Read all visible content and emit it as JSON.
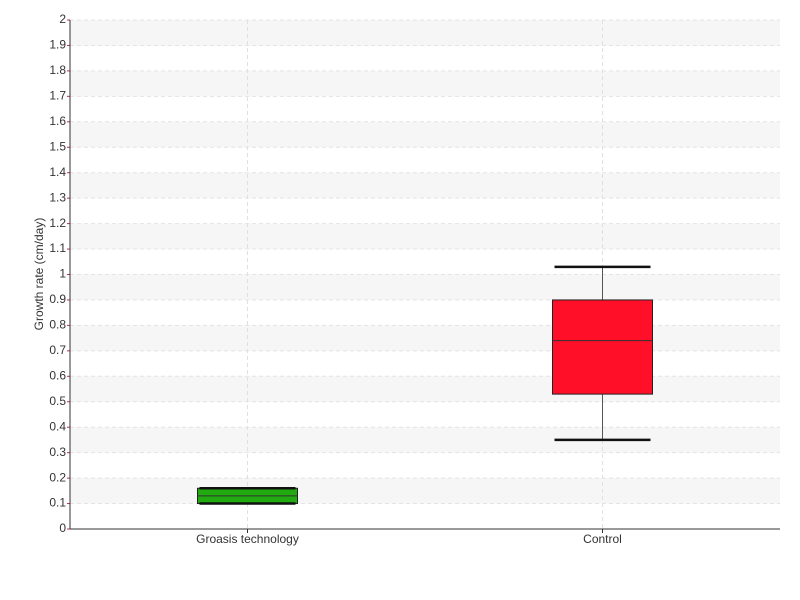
{
  "chart_data": {
    "type": "box",
    "y_label": "Growth rate (cm/day)",
    "categories": [
      "Groasis technology",
      "Control"
    ],
    "colors": [
      "#22aa11",
      "#ff0f28"
    ],
    "min": [
      0.1,
      0.35
    ],
    "q1": [
      0.1,
      0.53
    ],
    "median": [
      0.13,
      0.74
    ],
    "q3": [
      0.16,
      0.9
    ],
    "max": [
      0.16,
      1.03
    ],
    "ylim": [
      0,
      2
    ],
    "yticks": [
      0,
      0.1,
      0.2,
      0.3,
      0.4,
      0.5,
      0.6,
      0.7,
      0.8,
      0.9,
      1,
      1.1,
      1.2,
      1.3,
      1.4,
      1.5,
      1.6,
      1.7,
      1.8,
      1.9,
      2
    ],
    "grid": true
  }
}
